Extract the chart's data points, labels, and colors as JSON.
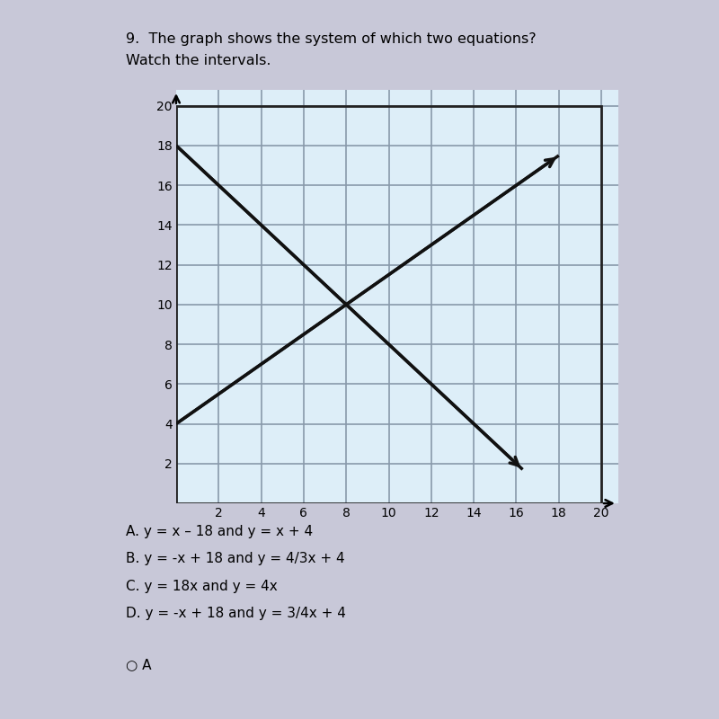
{
  "title_line1": "9.  The graph shows the system of which two equations?",
  "title_line2": "Watch the intervals.",
  "title_fontsize": 11.5,
  "page_bg": "#c8c8d8",
  "content_bg": "#e8e8e8",
  "plot_bg": "#ddeef8",
  "grid_color": "#8899aa",
  "border_color": "#222222",
  "line_color": "#111111",
  "line_width": 2.5,
  "xmin": 0,
  "xmax": 20,
  "ymin": 0,
  "ymax": 20,
  "xticks": [
    2,
    4,
    6,
    8,
    10,
    12,
    14,
    16,
    18,
    20
  ],
  "yticks": [
    2,
    4,
    6,
    8,
    10,
    12,
    14,
    16,
    18,
    20
  ],
  "line1_slope": -1,
  "line1_intercept": 18,
  "line1_x_start": 0,
  "line1_x_end": 16.3,
  "line2_slope": 0.75,
  "line2_intercept": 4,
  "line2_x_start": 0,
  "line2_x_end": 18.0,
  "choices": [
    "A. y = x – 18 and y = x + 4",
    "B. y = -x + 18 and y = 4/3x + 4",
    "C. y = 18x and y = 4x",
    "D. y = -x + 18 and y = 3/4x + 4"
  ],
  "selected": "A",
  "tick_fontsize": 10,
  "choice_fontsize": 11
}
